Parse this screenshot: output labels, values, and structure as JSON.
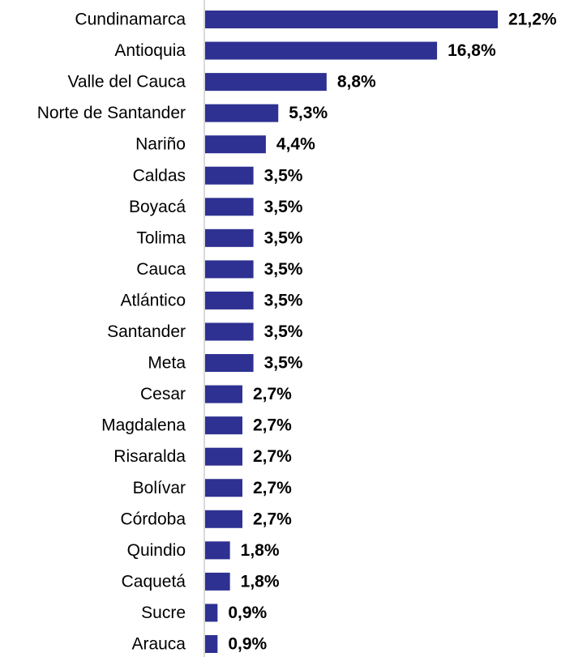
{
  "chart_data": {
    "type": "bar",
    "orientation": "horizontal",
    "categories": [
      "Cundinamarca",
      "Antioquia",
      "Valle del Cauca",
      "Norte de Santander",
      "Nariño",
      "Caldas",
      "Boyacá",
      "Tolima",
      "Cauca",
      "Atlántico",
      "Santander",
      "Meta",
      "Cesar",
      "Magdalena",
      "Risaralda",
      "Bolívar",
      "Córdoba",
      "Quindio",
      "Caquetá",
      "Sucre",
      "Arauca"
    ],
    "values": [
      21.2,
      16.8,
      8.8,
      5.3,
      4.4,
      3.5,
      3.5,
      3.5,
      3.5,
      3.5,
      3.5,
      3.5,
      2.7,
      2.7,
      2.7,
      2.7,
      2.7,
      1.8,
      1.8,
      0.9,
      0.9
    ],
    "value_labels": [
      "21,2%",
      "16,8%",
      "8,8%",
      "5,3%",
      "4,4%",
      "3,5%",
      "3,5%",
      "3,5%",
      "3,5%",
      "3,5%",
      "3,5%",
      "3,5%",
      "2,7%",
      "2,7%",
      "2,7%",
      "2,7%",
      "2,7%",
      "1,8%",
      "1,8%",
      "0,9%",
      "0,9%"
    ],
    "unit": "%",
    "xlim": [
      0,
      21.2
    ],
    "grid": false,
    "legend": "none",
    "bar_color": "#2e3192",
    "axis_color": "#b3b3b3",
    "title": "",
    "xlabel": "",
    "ylabel": ""
  }
}
